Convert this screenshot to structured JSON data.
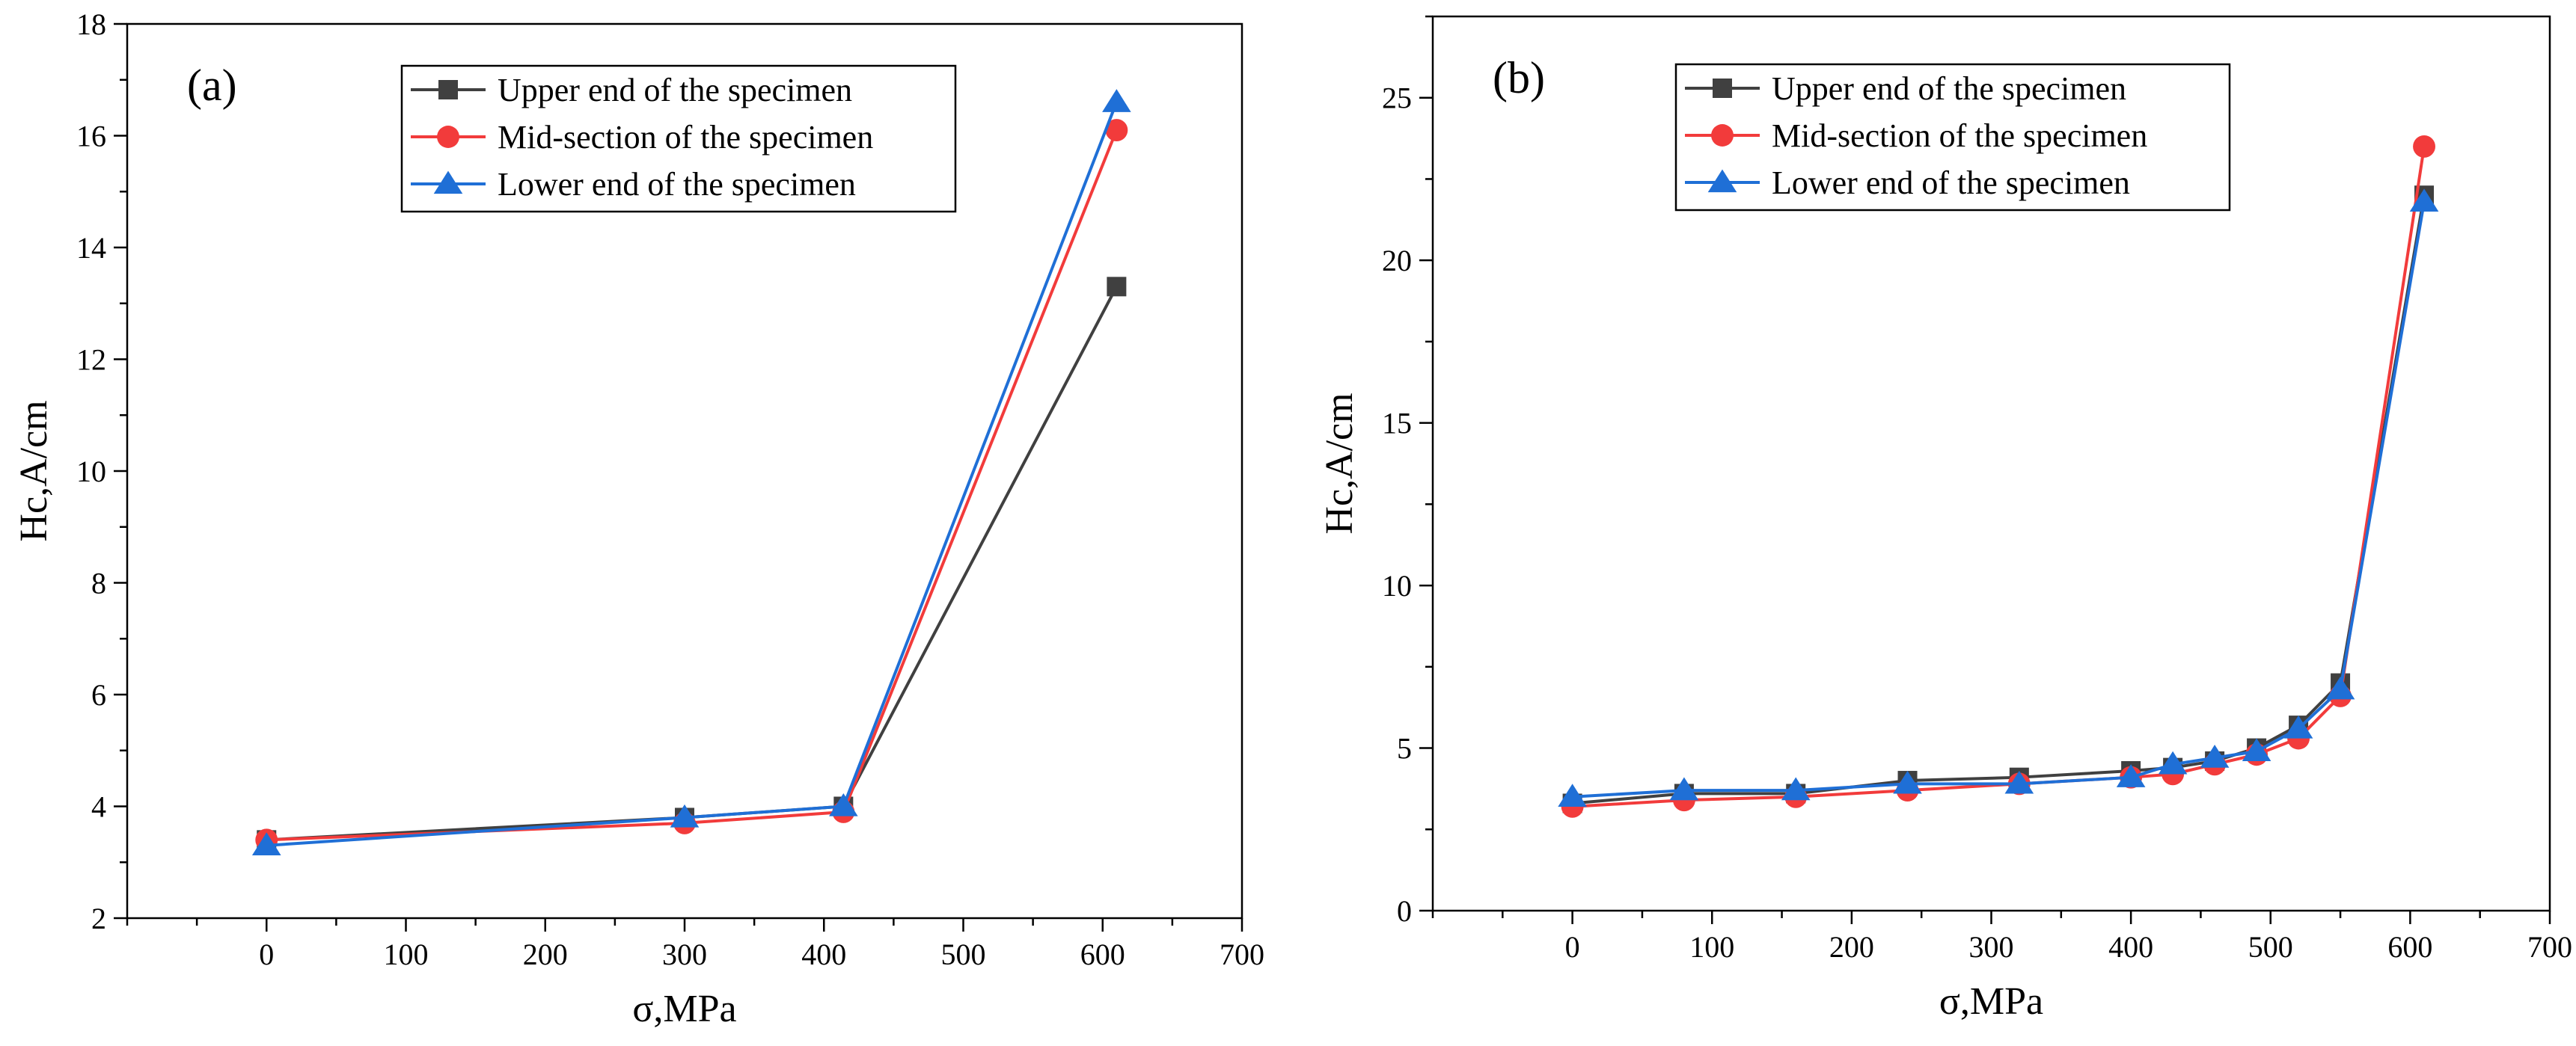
{
  "chart_data": [
    {
      "type": "line",
      "panel_label": "(a)",
      "xlabel": "σ,MPa",
      "ylabel": "Hc,A/cm",
      "xlim": [
        -100,
        700
      ],
      "ylim": [
        2,
        18
      ],
      "xticks": [
        0,
        100,
        200,
        300,
        400,
        500,
        600,
        700
      ],
      "yticks": [
        2,
        4,
        6,
        8,
        10,
        12,
        14,
        16,
        18
      ],
      "legend_position": "top-center",
      "series": [
        {
          "name": "Upper end of the specimen",
          "marker": "square",
          "color": "#404040",
          "x": [
            0,
            300,
            414,
            610
          ],
          "y": [
            3.4,
            3.8,
            4.0,
            13.3
          ]
        },
        {
          "name": "Mid-section of the specimen",
          "marker": "circle",
          "color": "#f23b3b",
          "x": [
            0,
            300,
            414,
            610
          ],
          "y": [
            3.4,
            3.7,
            3.9,
            16.1
          ]
        },
        {
          "name": "Lower end of the specimen",
          "marker": "triangle",
          "color": "#1f6fd6",
          "x": [
            0,
            300,
            414,
            610
          ],
          "y": [
            3.3,
            3.8,
            4.0,
            16.6
          ]
        }
      ]
    },
    {
      "type": "line",
      "panel_label": "(b)",
      "xlabel": "σ,MPa",
      "ylabel": "Hc,A/cm",
      "xlim": [
        -100,
        700
      ],
      "ylim": [
        0,
        27.5
      ],
      "xticks": [
        0,
        100,
        200,
        300,
        400,
        500,
        600,
        700
      ],
      "yticks": [
        0,
        5,
        10,
        15,
        20,
        25
      ],
      "legend_position": "top-center",
      "series": [
        {
          "name": "Upper end of the specimen",
          "marker": "square",
          "color": "#404040",
          "x": [
            0,
            80,
            160,
            240,
            320,
            400,
            430,
            460,
            490,
            520,
            550,
            610
          ],
          "y": [
            3.3,
            3.6,
            3.6,
            4.0,
            4.1,
            4.3,
            4.4,
            4.6,
            5.0,
            5.7,
            7.0,
            22.0
          ]
        },
        {
          "name": "Mid-section of the specimen",
          "marker": "circle",
          "color": "#f23b3b",
          "x": [
            0,
            80,
            160,
            240,
            320,
            400,
            430,
            460,
            490,
            520,
            550,
            610
          ],
          "y": [
            3.2,
            3.4,
            3.5,
            3.7,
            3.9,
            4.1,
            4.2,
            4.5,
            4.8,
            5.3,
            6.6,
            23.5
          ]
        },
        {
          "name": "Lower end of the specimen",
          "marker": "triangle",
          "color": "#1f6fd6",
          "x": [
            0,
            80,
            160,
            240,
            320,
            400,
            430,
            460,
            490,
            520,
            550,
            610
          ],
          "y": [
            3.5,
            3.7,
            3.7,
            3.9,
            3.9,
            4.1,
            4.5,
            4.7,
            4.9,
            5.6,
            6.8,
            21.8
          ]
        }
      ]
    }
  ]
}
